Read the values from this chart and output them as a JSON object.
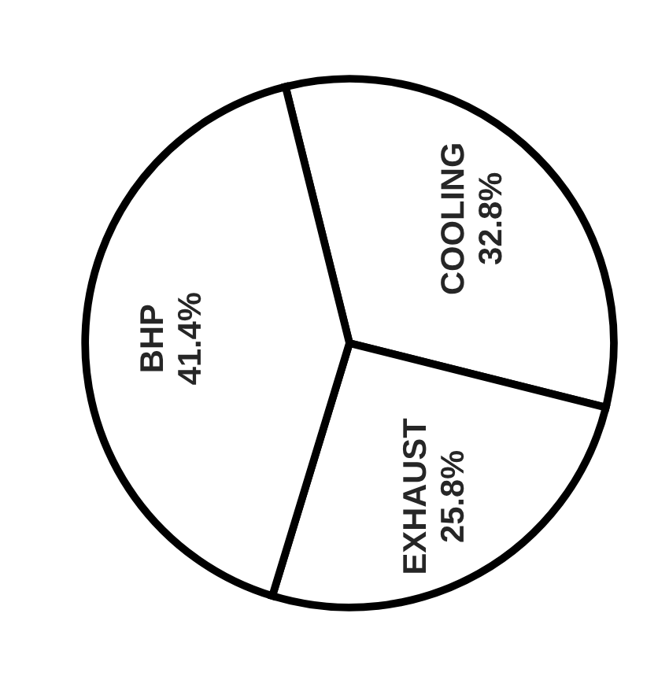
{
  "chart_data": {
    "type": "pie",
    "categories": [
      "COOLING",
      "EXHAUST",
      "BHP"
    ],
    "values": [
      32.8,
      25.8,
      41.4
    ],
    "value_labels": [
      "32.8%",
      "25.8%",
      "41.4%"
    ],
    "colors": [
      "#ffffff",
      "#ffffff",
      "#ffffff"
    ]
  }
}
